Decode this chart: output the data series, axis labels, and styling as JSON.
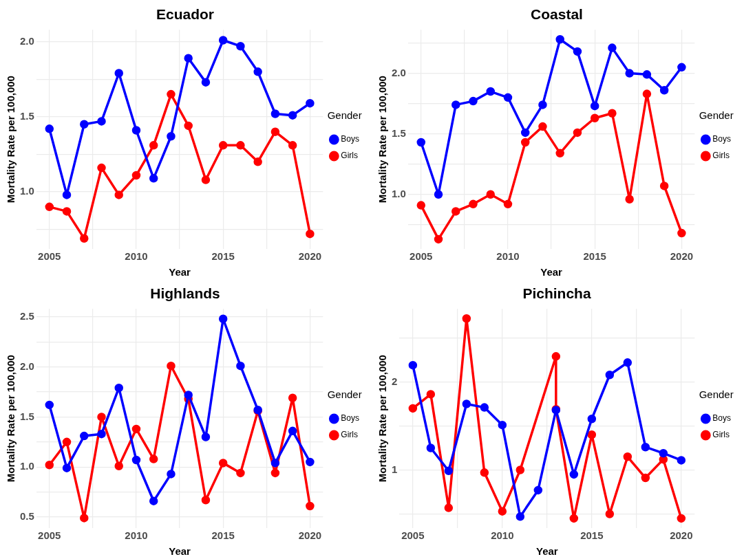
{
  "chart_data": [
    {
      "type": "line",
      "title": "Ecuador",
      "xlabel": "Year",
      "ylabel": "Mortality Rate per 100,000",
      "legend_title": "Gender",
      "legend": "right",
      "marker": "circle",
      "grid": true,
      "x": [
        2005,
        2006,
        2007,
        2008,
        2009,
        2010,
        2011,
        2012,
        2013,
        2014,
        2015,
        2016,
        2017,
        2018,
        2019,
        2020
      ],
      "xlim": [
        2004.25,
        2020.75
      ],
      "xticks": [
        2005,
        {
          "value": 2007.5,
          "label": null
        },
        2010,
        {
          "value": 2012.5,
          "label": null
        },
        2015,
        {
          "value": 2017.5,
          "label": null
        },
        2020
      ],
      "ylim": [
        0.62,
        2.08
      ],
      "yticks": [
        {
          "value": 0.75,
          "label": null
        },
        {
          "value": 1.0,
          "label": "1.0"
        },
        {
          "value": 1.25,
          "label": null
        },
        {
          "value": 1.5,
          "label": "1.5"
        },
        {
          "value": 1.75,
          "label": null
        },
        {
          "value": 2.0,
          "label": "2.0"
        }
      ],
      "series": [
        {
          "name": "Boys",
          "color": "#0000ff",
          "values": [
            1.42,
            0.98,
            1.45,
            1.47,
            1.79,
            1.41,
            1.09,
            1.37,
            1.89,
            1.73,
            2.01,
            1.97,
            1.8,
            1.52,
            1.51,
            1.59
          ]
        },
        {
          "name": "Girls",
          "color": "#ff0000",
          "values": [
            0.9,
            0.87,
            0.69,
            1.16,
            0.98,
            1.11,
            1.31,
            1.65,
            1.44,
            1.08,
            1.31,
            1.31,
            1.2,
            1.4,
            1.31,
            0.72
          ]
        }
      ]
    },
    {
      "type": "line",
      "title": "Coastal",
      "xlabel": "Year",
      "ylabel": "Mortality Rate per 100,000",
      "legend_title": "Gender",
      "legend": "right",
      "marker": "circle",
      "grid": true,
      "x": [
        2005,
        2006,
        2007,
        2008,
        2009,
        2010,
        2011,
        2012,
        2013,
        2014,
        2015,
        2016,
        2017,
        2018,
        2019,
        2020
      ],
      "xlim": [
        2004.25,
        2020.75
      ],
      "xticks": [
        2005,
        {
          "value": 2007.5,
          "label": null
        },
        2010,
        {
          "value": 2012.5,
          "label": null
        },
        2015,
        {
          "value": 2017.5,
          "label": null
        },
        2020
      ],
      "ylim": [
        0.55,
        2.36
      ],
      "yticks": [
        {
          "value": 0.75,
          "label": null
        },
        {
          "value": 1.0,
          "label": "1.0"
        },
        {
          "value": 1.25,
          "label": null
        },
        {
          "value": 1.5,
          "label": "1.5"
        },
        {
          "value": 1.75,
          "label": null
        },
        {
          "value": 2.0,
          "label": "2.0"
        },
        {
          "value": 2.25,
          "label": null
        }
      ],
      "series": [
        {
          "name": "Boys",
          "color": "#0000ff",
          "values": [
            1.43,
            1.0,
            1.74,
            1.77,
            1.85,
            1.8,
            1.51,
            1.74,
            2.28,
            2.18,
            1.73,
            2.21,
            2.0,
            1.99,
            1.86,
            2.05
          ]
        },
        {
          "name": "Girls",
          "color": "#ff0000",
          "values": [
            0.91,
            0.63,
            0.86,
            0.92,
            1.0,
            0.92,
            1.43,
            1.56,
            1.34,
            1.51,
            1.63,
            1.67,
            0.96,
            1.83,
            1.07,
            0.68
          ]
        }
      ]
    },
    {
      "type": "line",
      "title": "Highlands",
      "xlabel": "Year",
      "ylabel": "Mortality Rate per 100,000",
      "legend_title": "Gender",
      "legend": "right",
      "marker": "circle",
      "grid": true,
      "x": [
        2005,
        2006,
        2007,
        2008,
        2009,
        2010,
        2011,
        2012,
        2013,
        2014,
        2015,
        2016,
        2017,
        2018,
        2019,
        2020
      ],
      "xlim": [
        2004.25,
        2020.75
      ],
      "xticks": [
        2005,
        {
          "value": 2007.5,
          "label": null
        },
        2010,
        {
          "value": 2012.5,
          "label": null
        },
        2015,
        {
          "value": 2017.5,
          "label": null
        },
        2020
      ],
      "ylim": [
        0.39,
        2.58
      ],
      "yticks": [
        {
          "value": 0.5,
          "label": "0.5"
        },
        {
          "value": 0.75,
          "label": null
        },
        {
          "value": 1.0,
          "label": "1.0"
        },
        {
          "value": 1.25,
          "label": null
        },
        {
          "value": 1.5,
          "label": "1.5"
        },
        {
          "value": 1.75,
          "label": null
        },
        {
          "value": 2.0,
          "label": "2.0"
        },
        {
          "value": 2.25,
          "label": null
        },
        {
          "value": 2.5,
          "label": "2.5"
        }
      ],
      "series": [
        {
          "name": "Boys",
          "color": "#0000ff",
          "values": [
            1.62,
            0.99,
            1.31,
            1.33,
            1.79,
            1.07,
            0.66,
            0.93,
            1.72,
            1.3,
            2.48,
            2.01,
            1.57,
            1.04,
            1.36,
            1.05
          ]
        },
        {
          "name": "Girls",
          "color": "#ff0000",
          "values": [
            1.02,
            1.25,
            0.49,
            1.5,
            1.01,
            1.38,
            1.08,
            2.01,
            1.68,
            0.67,
            1.04,
            0.94,
            1.56,
            0.94,
            1.69,
            0.61
          ]
        }
      ]
    },
    {
      "type": "line",
      "title": "Pichincha",
      "xlabel": "Year",
      "ylabel": "Mortality Rate per 100,000",
      "legend_title": "Gender",
      "legend": "right",
      "marker": "circle",
      "grid": true,
      "xlim": [
        2004.25,
        2020.75
      ],
      "xticks": [
        2005,
        {
          "value": 2007.5,
          "label": null
        },
        2010,
        {
          "value": 2012.5,
          "label": null
        },
        2015,
        {
          "value": 2017.5,
          "label": null
        },
        2020
      ],
      "ylim": [
        0.34,
        2.83
      ],
      "yticks": [
        {
          "value": 0.5,
          "label": null
        },
        1,
        {
          "value": 1.5,
          "label": null
        },
        2,
        {
          "value": 2.5,
          "label": null
        }
      ],
      "series": [
        {
          "name": "Boys",
          "color": "#0000ff",
          "x": [
            2005,
            2006,
            2007,
            2008,
            2009,
            2010,
            2011,
            2012,
            2013,
            2014,
            2015,
            2016,
            2017,
            2018,
            2019,
            2020
          ],
          "values": [
            2.19,
            1.25,
            0.99,
            1.75,
            1.71,
            1.51,
            0.47,
            0.77,
            1.68,
            0.95,
            1.58,
            2.08,
            2.22,
            1.26,
            1.19,
            1.11
          ]
        },
        {
          "name": "Girls",
          "color": "#ff0000",
          "x": [
            2005,
            2006,
            2007,
            2008,
            2009,
            2010,
            2011,
            2013,
            2013,
            2014,
            2015,
            2016,
            2017,
            2018,
            2019,
            2020
          ],
          "values": [
            1.7,
            1.86,
            0.57,
            2.72,
            0.97,
            0.53,
            1.0,
            2.29,
            1.69,
            0.45,
            1.4,
            0.5,
            1.15,
            0.91,
            1.12,
            0.45
          ]
        }
      ]
    }
  ]
}
